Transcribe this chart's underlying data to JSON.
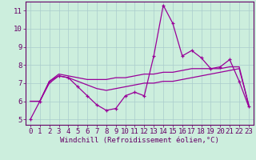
{
  "xlabel": "Windchill (Refroidissement éolien,°C)",
  "background_color": "#cceedd",
  "grid_color": "#aacccc",
  "line_color": "#990099",
  "spine_color": "#660066",
  "tick_color": "#660066",
  "xlim": [
    -0.5,
    23.5
  ],
  "ylim": [
    4.7,
    11.5
  ],
  "yticks": [
    5,
    6,
    7,
    8,
    9,
    10,
    11
  ],
  "xticks": [
    0,
    1,
    2,
    3,
    4,
    5,
    6,
    7,
    8,
    9,
    10,
    11,
    12,
    13,
    14,
    15,
    16,
    17,
    18,
    19,
    20,
    21,
    22,
    23
  ],
  "series1_x": [
    0,
    1,
    2,
    3,
    4,
    5,
    6,
    7,
    8,
    9,
    10,
    11,
    12,
    13,
    14,
    15,
    16,
    17,
    18,
    19,
    20,
    21,
    22,
    23
  ],
  "series1_y": [
    5.0,
    6.0,
    7.1,
    7.4,
    7.3,
    6.8,
    6.3,
    5.8,
    5.5,
    5.6,
    6.3,
    6.5,
    6.3,
    8.5,
    11.3,
    10.3,
    8.5,
    8.8,
    8.4,
    7.8,
    7.9,
    8.3,
    7.1,
    5.7
  ],
  "series2_x": [
    0,
    1,
    2,
    3,
    4,
    5,
    6,
    7,
    8,
    9,
    10,
    11,
    12,
    13,
    14,
    15,
    16,
    17,
    18,
    19,
    20,
    21,
    22,
    23
  ],
  "series2_y": [
    6.0,
    6.0,
    7.1,
    7.5,
    7.4,
    7.3,
    7.2,
    7.2,
    7.2,
    7.3,
    7.3,
    7.4,
    7.5,
    7.5,
    7.6,
    7.6,
    7.7,
    7.8,
    7.8,
    7.8,
    7.8,
    7.9,
    7.9,
    5.8
  ],
  "series3_x": [
    0,
    1,
    2,
    3,
    4,
    5,
    6,
    7,
    8,
    9,
    10,
    11,
    12,
    13,
    14,
    15,
    16,
    17,
    18,
    19,
    20,
    21,
    22,
    23
  ],
  "series3_y": [
    6.0,
    6.0,
    7.0,
    7.4,
    7.3,
    7.1,
    6.9,
    6.7,
    6.6,
    6.7,
    6.8,
    6.9,
    7.0,
    7.0,
    7.1,
    7.1,
    7.2,
    7.3,
    7.4,
    7.5,
    7.6,
    7.7,
    7.8,
    5.8
  ],
  "tick_fontsize": 6.5,
  "xlabel_fontsize": 6.5,
  "marker_size": 3.5,
  "line_width": 0.9
}
